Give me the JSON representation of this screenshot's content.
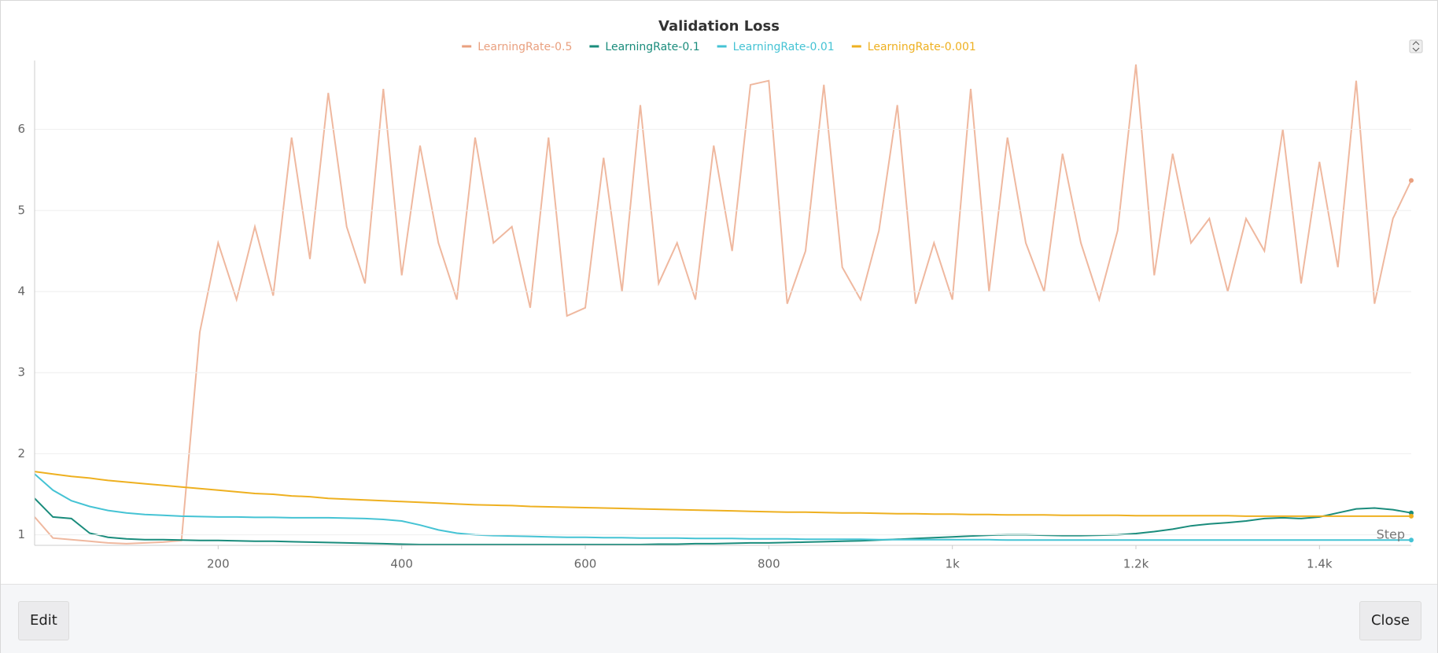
{
  "chart_data": {
    "type": "line",
    "title": "Validation Loss",
    "x_label": "Step",
    "x": [
      0,
      20,
      40,
      60,
      80,
      100,
      120,
      140,
      160,
      180,
      200,
      220,
      240,
      260,
      280,
      300,
      320,
      340,
      360,
      380,
      400,
      420,
      440,
      460,
      480,
      500,
      520,
      540,
      560,
      580,
      600,
      620,
      640,
      660,
      680,
      700,
      720,
      740,
      760,
      780,
      800,
      820,
      840,
      860,
      880,
      900,
      920,
      940,
      960,
      980,
      1000,
      1020,
      1040,
      1060,
      1080,
      1100,
      1120,
      1140,
      1160,
      1180,
      1200,
      1220,
      1240,
      1260,
      1280,
      1300,
      1320,
      1340,
      1360,
      1380,
      1400,
      1420,
      1440,
      1460,
      1480,
      1500
    ],
    "series": [
      {
        "name": "LearningRate-0.5",
        "color": "#e9a07f",
        "values": [
          1.22,
          0.96,
          0.94,
          0.92,
          0.9,
          0.89,
          0.9,
          0.91,
          0.93,
          3.5,
          4.6,
          3.9,
          4.8,
          3.95,
          5.9,
          4.4,
          6.45,
          4.8,
          4.1,
          6.5,
          4.2,
          5.8,
          4.6,
          3.9,
          5.9,
          4.6,
          4.8,
          3.8,
          5.9,
          3.7,
          3.8,
          5.65,
          4.0,
          6.3,
          4.1,
          4.6,
          3.9,
          5.8,
          4.5,
          6.55,
          6.6,
          3.85,
          4.5,
          6.55,
          4.3,
          3.9,
          4.75,
          6.3,
          3.85,
          4.6,
          3.9,
          6.5,
          4.0,
          5.9,
          4.6,
          4.0,
          5.7,
          4.6,
          3.9,
          4.75,
          6.8,
          4.2,
          5.7,
          4.6,
          4.9,
          4.0,
          4.9,
          4.5,
          6.0,
          4.1,
          5.6,
          4.3,
          6.6,
          3.85,
          4.9,
          5.37
        ]
      },
      {
        "name": "LearningRate-0.1",
        "color": "#1a8c7c",
        "values": [
          1.45,
          1.22,
          1.2,
          1.02,
          0.97,
          0.95,
          0.94,
          0.94,
          0.935,
          0.93,
          0.93,
          0.925,
          0.92,
          0.92,
          0.915,
          0.91,
          0.905,
          0.9,
          0.895,
          0.89,
          0.885,
          0.88,
          0.88,
          0.88,
          0.88,
          0.88,
          0.88,
          0.88,
          0.88,
          0.88,
          0.88,
          0.88,
          0.88,
          0.88,
          0.885,
          0.885,
          0.89,
          0.89,
          0.895,
          0.9,
          0.9,
          0.905,
          0.91,
          0.915,
          0.92,
          0.925,
          0.935,
          0.945,
          0.955,
          0.965,
          0.975,
          0.985,
          0.995,
          1.0,
          1.0,
          0.995,
          0.99,
          0.99,
          0.995,
          1.0,
          1.015,
          1.04,
          1.07,
          1.11,
          1.135,
          1.15,
          1.17,
          1.2,
          1.21,
          1.2,
          1.22,
          1.27,
          1.32,
          1.33,
          1.31,
          1.27
        ]
      },
      {
        "name": "LearningRate-0.01",
        "color": "#45c3d4",
        "values": [
          1.75,
          1.55,
          1.42,
          1.35,
          1.3,
          1.27,
          1.25,
          1.24,
          1.23,
          1.225,
          1.22,
          1.22,
          1.215,
          1.215,
          1.21,
          1.21,
          1.21,
          1.205,
          1.2,
          1.19,
          1.17,
          1.12,
          1.06,
          1.02,
          1.0,
          0.99,
          0.985,
          0.98,
          0.975,
          0.97,
          0.97,
          0.965,
          0.965,
          0.96,
          0.96,
          0.96,
          0.955,
          0.955,
          0.955,
          0.95,
          0.95,
          0.95,
          0.945,
          0.945,
          0.945,
          0.945,
          0.94,
          0.94,
          0.94,
          0.94,
          0.94,
          0.94,
          0.94,
          0.935,
          0.935,
          0.935,
          0.935,
          0.935,
          0.935,
          0.935,
          0.935,
          0.935,
          0.935,
          0.935,
          0.935,
          0.935,
          0.935,
          0.935,
          0.935,
          0.935,
          0.935,
          0.935,
          0.935,
          0.935,
          0.935,
          0.935
        ]
      },
      {
        "name": "LearningRate-0.001",
        "color": "#eeb020",
        "values": [
          1.78,
          1.75,
          1.72,
          1.7,
          1.67,
          1.65,
          1.63,
          1.61,
          1.59,
          1.57,
          1.55,
          1.53,
          1.51,
          1.5,
          1.48,
          1.47,
          1.45,
          1.44,
          1.43,
          1.42,
          1.41,
          1.4,
          1.39,
          1.38,
          1.37,
          1.365,
          1.36,
          1.35,
          1.345,
          1.34,
          1.335,
          1.33,
          1.325,
          1.32,
          1.315,
          1.31,
          1.305,
          1.3,
          1.295,
          1.29,
          1.285,
          1.28,
          1.28,
          1.275,
          1.27,
          1.27,
          1.265,
          1.26,
          1.26,
          1.255,
          1.255,
          1.25,
          1.25,
          1.245,
          1.245,
          1.245,
          1.24,
          1.24,
          1.24,
          1.24,
          1.235,
          1.235,
          1.235,
          1.235,
          1.235,
          1.235,
          1.23,
          1.23,
          1.23,
          1.23,
          1.23,
          1.23,
          1.23,
          1.23,
          1.23,
          1.23
        ]
      }
    ],
    "xlim": [
      0,
      1500
    ],
    "xticks": [
      200,
      400,
      600,
      800,
      {
        "value": 1000,
        "label": "1k"
      },
      {
        "value": 1200,
        "label": "1.2k"
      },
      {
        "value": 1400,
        "label": "1.4k"
      }
    ],
    "ylim": [
      0.87,
      6.83
    ],
    "yticks": [
      1,
      2,
      3,
      4,
      5,
      6
    ],
    "grid": true
  },
  "buttons": {
    "edit": "Edit",
    "close": "Close"
  }
}
